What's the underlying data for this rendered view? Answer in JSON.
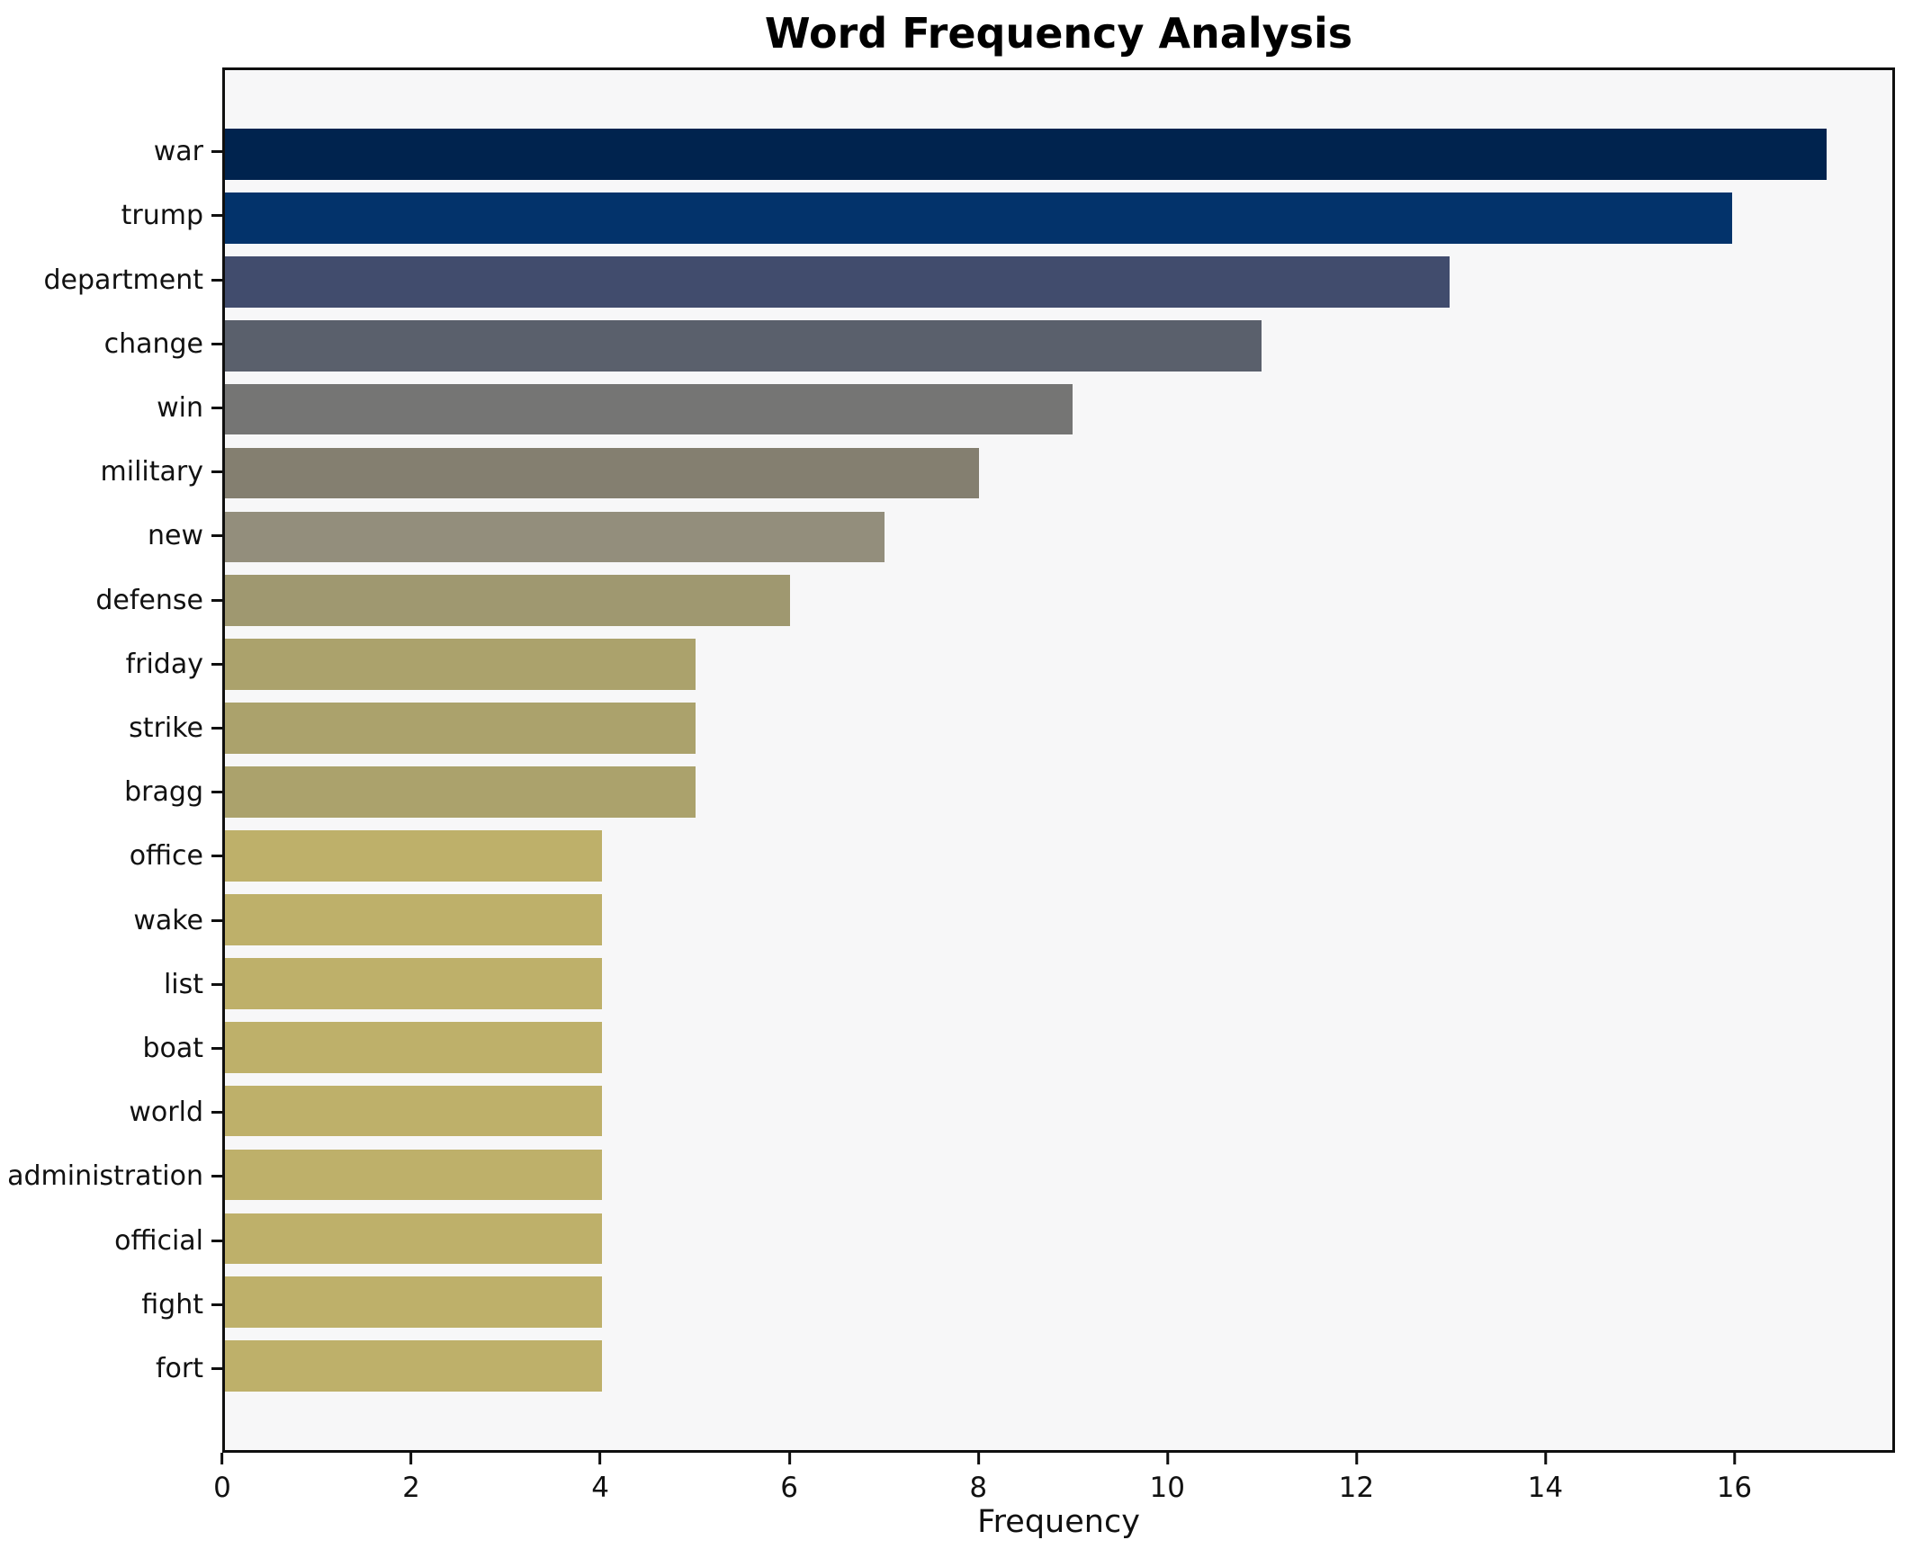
{
  "chart": {
    "title": "Word Frequency Analysis",
    "xlabel": "Frequency"
  },
  "chart_data": {
    "type": "bar",
    "orientation": "horizontal",
    "title": "Word Frequency Analysis",
    "xlabel": "Frequency",
    "ylabel": "",
    "categories": [
      "war",
      "trump",
      "department",
      "change",
      "win",
      "military",
      "new",
      "defense",
      "friday",
      "strike",
      "bragg",
      "office",
      "wake",
      "list",
      "boat",
      "world",
      "administration",
      "official",
      "fight",
      "fort"
    ],
    "values": [
      17,
      16,
      13,
      11,
      9,
      8,
      7,
      6,
      5,
      5,
      5,
      4,
      4,
      4,
      4,
      4,
      4,
      4,
      4,
      4
    ],
    "bar_colors": [
      "#00234e",
      "#03336b",
      "#414c6d",
      "#5a606c",
      "#757574",
      "#847f70",
      "#938e7c",
      "#9f9870",
      "#aba26c",
      "#aba26c",
      "#aba26c",
      "#beb06a",
      "#beb06a",
      "#beb06a",
      "#beb06a",
      "#beb06a",
      "#beb06a",
      "#beb06a",
      "#beb06a",
      "#beb06a"
    ],
    "x_ticks": [
      0,
      2,
      4,
      6,
      8,
      10,
      12,
      14,
      16
    ],
    "xlim": [
      0,
      17.7
    ],
    "grid": false,
    "legend": null,
    "bar_relative_height": 0.8,
    "plot_bg": "#f7f7f8",
    "figure_bg": "#ffffff",
    "spine_color": "#0f0f0f",
    "text_color": "#111111"
  }
}
